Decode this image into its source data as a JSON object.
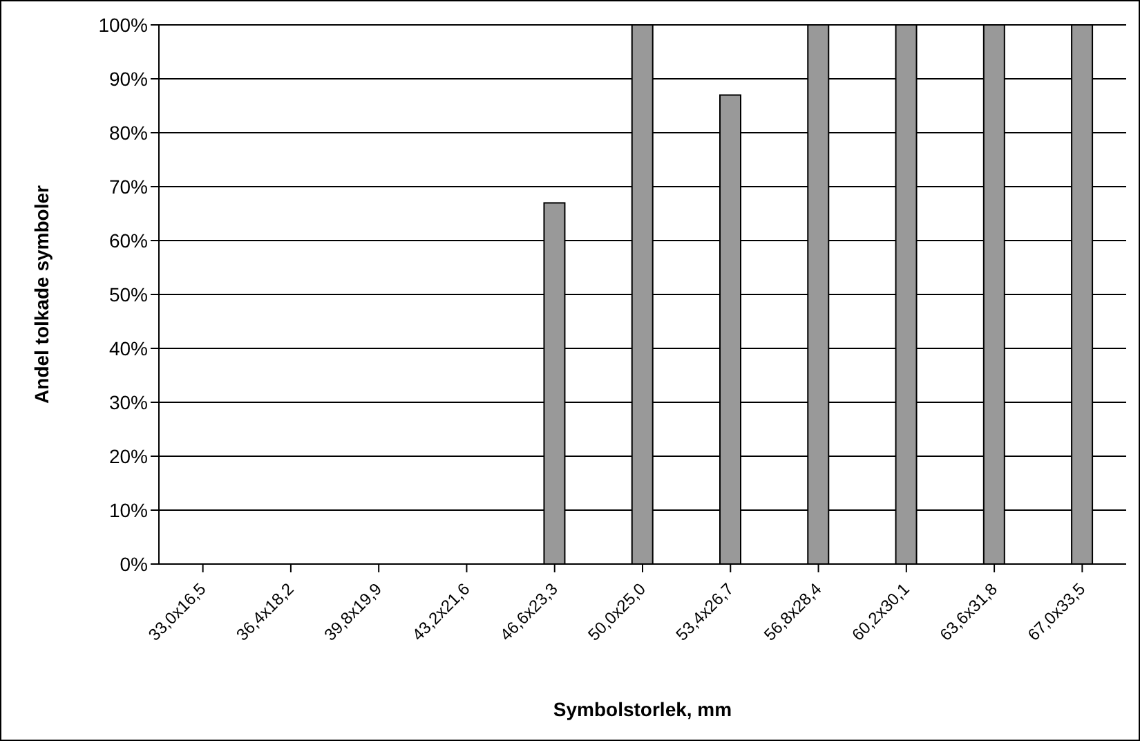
{
  "chart_data": {
    "type": "bar",
    "xlabel": "Symbolstorlek, mm",
    "ylabel": "Andel tolkade symboler",
    "categories": [
      "33,0x16,5",
      "36,4x18,2",
      "39,8x19,9",
      "43,2x21,6",
      "46,6x23,3",
      "50,0x25,0",
      "53,4x26,7",
      "56,8x28,4",
      "60,2x30,1",
      "63,6x31,8",
      "67,0x33,5"
    ],
    "values": [
      0,
      0,
      0,
      0,
      67,
      100,
      87,
      100,
      100,
      100,
      100
    ],
    "color": "#999999",
    "ylim": [
      0,
      100
    ],
    "yticks": [
      {
        "value": 0,
        "label": "0%"
      },
      {
        "value": 10,
        "label": "10%"
      },
      {
        "value": 20,
        "label": "20%"
      },
      {
        "value": 30,
        "label": "30%"
      },
      {
        "value": 40,
        "label": "40%"
      },
      {
        "value": 50,
        "label": "50%"
      },
      {
        "value": 60,
        "label": "60%"
      },
      {
        "value": 70,
        "label": "70%"
      },
      {
        "value": 80,
        "label": "80%"
      },
      {
        "value": 90,
        "label": "90%"
      },
      {
        "value": 100,
        "label": "100%"
      }
    ],
    "grid": "y",
    "legend": false
  }
}
